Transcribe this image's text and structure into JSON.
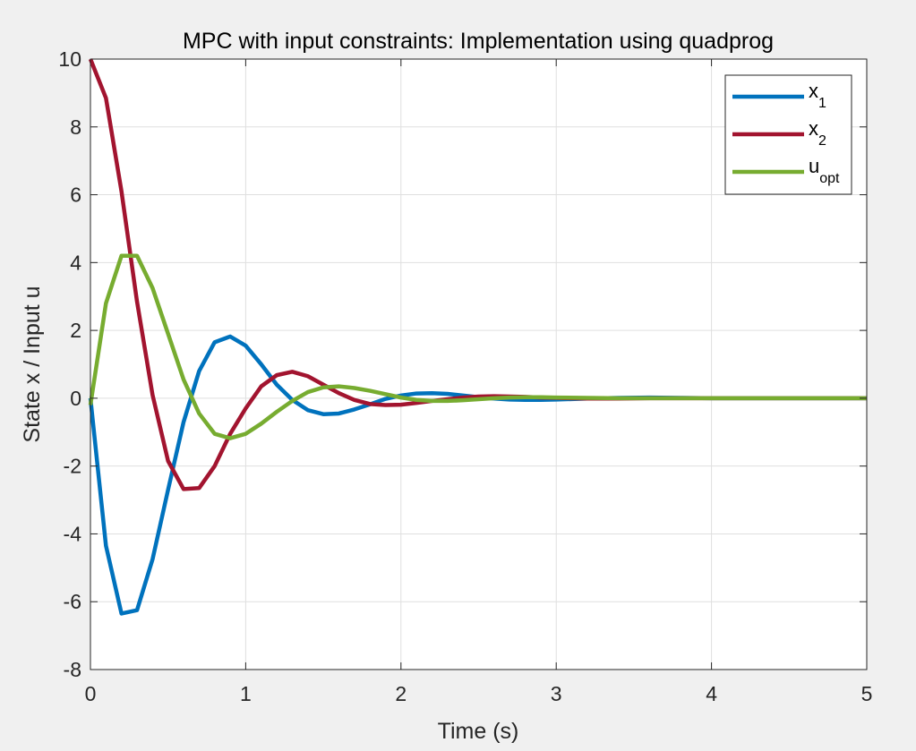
{
  "chart_data": {
    "type": "line",
    "title": "MPC with input constraints: Implementation using quadprog",
    "xlabel": "Time (s)",
    "ylabel": "State x / Input u",
    "xlim": [
      0,
      5
    ],
    "ylim": [
      -8,
      10
    ],
    "xticks": [
      0,
      1,
      2,
      3,
      4,
      5
    ],
    "yticks": [
      -8,
      -6,
      -4,
      -2,
      0,
      2,
      4,
      6,
      8,
      10
    ],
    "xtick_labels": [
      "0",
      "1",
      "2",
      "3",
      "4",
      "5"
    ],
    "ytick_labels": [
      "-8",
      "-6",
      "-4",
      "-2",
      "0",
      "2",
      "4",
      "6",
      "8",
      "10"
    ],
    "grid": true,
    "legend_position": "top-right",
    "x": [
      0,
      0.1,
      0.2,
      0.3,
      0.4,
      0.5,
      0.6,
      0.7,
      0.8,
      0.9,
      1.0,
      1.1,
      1.2,
      1.3,
      1.4,
      1.5,
      1.6,
      1.7,
      1.8,
      1.9,
      2.0,
      2.1,
      2.2,
      2.3,
      2.4,
      2.5,
      2.6,
      2.7,
      2.8,
      2.9,
      3.0,
      3.2,
      3.4,
      3.6,
      3.8,
      4.0,
      4.2,
      4.4,
      4.6,
      4.8,
      5.0
    ],
    "series": [
      {
        "name": "x",
        "name_sub": "1",
        "color": "#0072bd",
        "values": [
          0,
          -4.35,
          -6.35,
          -6.25,
          -4.75,
          -2.7,
          -0.7,
          0.8,
          1.65,
          1.82,
          1.55,
          1.0,
          0.4,
          -0.05,
          -0.35,
          -0.47,
          -0.45,
          -0.33,
          -0.18,
          -0.02,
          0.08,
          0.14,
          0.15,
          0.13,
          0.08,
          0.03,
          -0.01,
          -0.04,
          -0.05,
          -0.05,
          -0.04,
          -0.01,
          0.01,
          0.02,
          0.01,
          0.0,
          0.0,
          0.0,
          0.0,
          0.0,
          0.0
        ]
      },
      {
        "name": "x",
        "name_sub": "2",
        "color": "#a2142f",
        "values": [
          10,
          8.85,
          6.1,
          2.85,
          0.1,
          -1.85,
          -2.68,
          -2.65,
          -2.0,
          -1.05,
          -0.3,
          0.35,
          0.68,
          0.78,
          0.65,
          0.4,
          0.15,
          -0.05,
          -0.17,
          -0.2,
          -0.19,
          -0.14,
          -0.08,
          -0.03,
          0.02,
          0.05,
          0.06,
          0.05,
          0.04,
          0.02,
          0.01,
          -0.01,
          -0.01,
          0.0,
          0.0,
          0.0,
          0.0,
          0.0,
          0.0,
          0.0,
          0.0
        ]
      },
      {
        "name": "u",
        "name_sub": "opt",
        "color": "#77ac30",
        "values": [
          -0.2,
          2.8,
          4.2,
          4.2,
          3.25,
          1.9,
          0.55,
          -0.45,
          -1.05,
          -1.18,
          -1.05,
          -0.75,
          -0.4,
          -0.08,
          0.18,
          0.32,
          0.35,
          0.3,
          0.22,
          0.12,
          0.02,
          -0.05,
          -0.08,
          -0.08,
          -0.06,
          -0.03,
          0.0,
          0.02,
          0.03,
          0.03,
          0.02,
          0.01,
          0.0,
          0.0,
          0.0,
          0.0,
          0.0,
          0.0,
          0.0,
          0.0,
          0.0
        ]
      }
    ]
  }
}
